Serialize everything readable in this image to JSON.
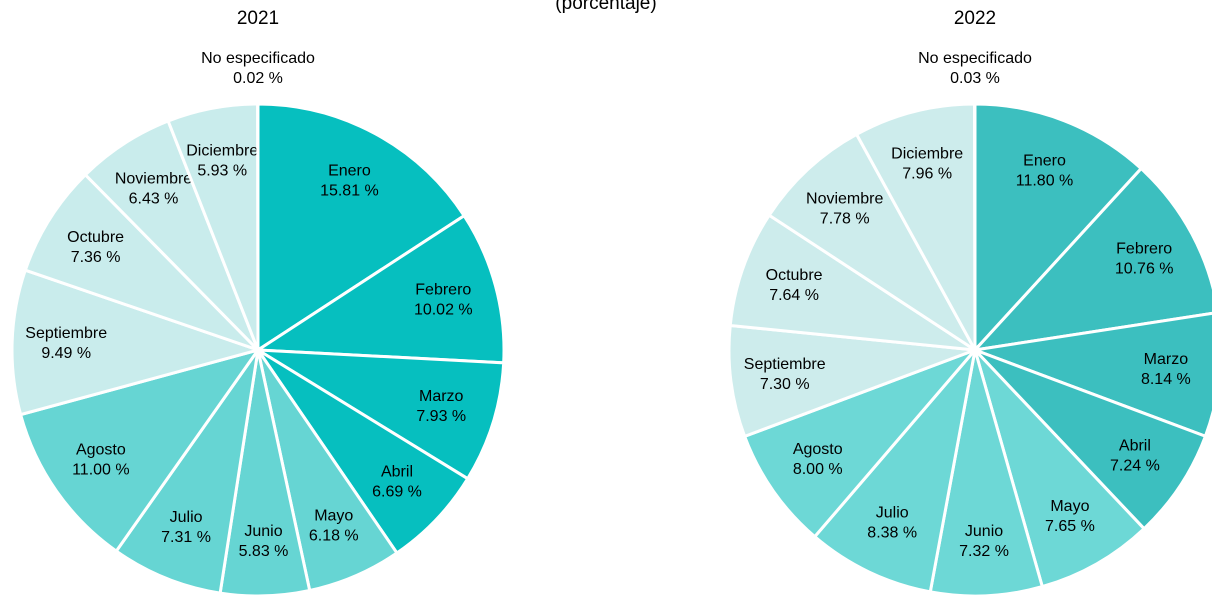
{
  "subtitle": "(porcentaje)",
  "chart_data": [
    {
      "type": "pie",
      "title": "2021",
      "categories": [
        "Enero",
        "Febrero",
        "Marzo",
        "Abril",
        "Mayo",
        "Junio",
        "Julio",
        "Agosto",
        "Septiembre",
        "Octubre",
        "Noviembre",
        "Diciembre",
        "No especificado"
      ],
      "values": [
        15.81,
        10.02,
        7.93,
        6.69,
        6.18,
        5.83,
        7.31,
        11.0,
        9.49,
        7.36,
        6.43,
        5.93,
        0.02
      ],
      "value_labels": [
        "15.81 %",
        "10.02 %",
        "7.93 %",
        "6.69 %",
        "6.18 %",
        "5.83 %",
        "7.31 %",
        "11.00 %",
        "9.49 %",
        "7.36 %",
        "6.43 %",
        "5.93 %",
        "0.02 %"
      ],
      "colors": [
        "#06bfbf",
        "#06bfbf",
        "#06bfbf",
        "#06bfbf",
        "#66d5d3",
        "#66d5d3",
        "#66d5d3",
        "#66d5d3",
        "#c9ecec",
        "#c9ecec",
        "#c9ecec",
        "#c9ecec",
        "#c9ecec"
      ]
    },
    {
      "type": "pie",
      "title": "2022",
      "categories": [
        "Enero",
        "Febrero",
        "Marzo",
        "Abril",
        "Mayo",
        "Junio",
        "Julio",
        "Agosto",
        "Septiembre",
        "Octubre",
        "Noviembre",
        "Diciembre",
        "No especificado"
      ],
      "values": [
        11.8,
        10.76,
        8.14,
        7.24,
        7.65,
        7.32,
        8.38,
        8.0,
        7.3,
        7.64,
        7.78,
        7.96,
        0.03
      ],
      "value_labels": [
        "11.80 %",
        "10.76 %",
        "8.14 %",
        "7.24 %",
        "7.65 %",
        "7.32 %",
        "8.38 %",
        "8.00 %",
        "7.30 %",
        "7.64 %",
        "7.78 %",
        "7.96 %",
        "0.03 %"
      ],
      "colors": [
        "#3cbfbf",
        "#3cbfbf",
        "#3cbfbf",
        "#3cbfbf",
        "#6dd8d6",
        "#6dd8d6",
        "#6dd8d6",
        "#6dd8d6",
        "#cdecec",
        "#cdecec",
        "#cdecec",
        "#cdecec",
        "#cdecec"
      ]
    }
  ]
}
